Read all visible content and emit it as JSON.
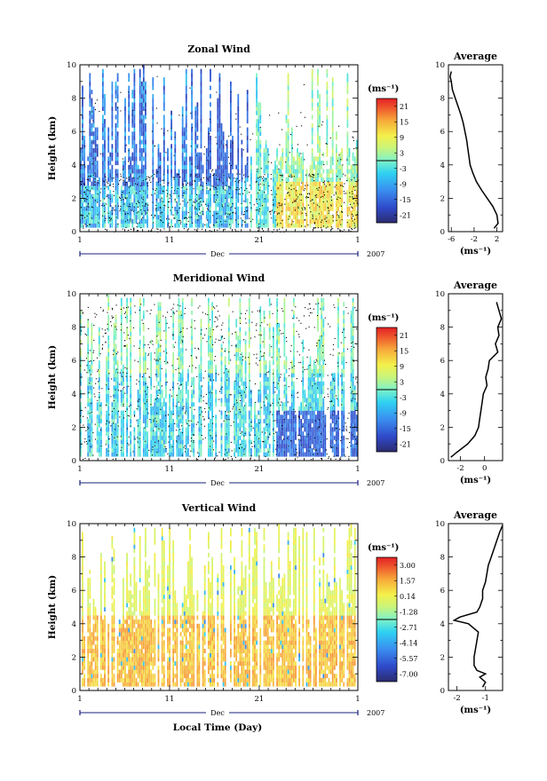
{
  "global": {
    "xlabel": "Local Time (Day)",
    "month_label": "Dec",
    "year_label": "2007",
    "x_tick_labels": [
      "1",
      "11",
      "21",
      "1"
    ],
    "y_tick_labels": [
      "0",
      "2",
      "4",
      "6",
      "8",
      "10"
    ],
    "ylabel": "Height (km)",
    "avg_title": "Average",
    "unit_label": "(ms⁻¹)"
  },
  "chart_data": [
    {
      "type": "heatmap",
      "title": "Zonal Wind",
      "xlabel": "Dec",
      "ylabel": "Height (km)",
      "x_range": [
        1,
        32
      ],
      "ylim": [
        0,
        10
      ],
      "colorbar_label": "(ms⁻¹)",
      "colorbar_ticks": [
        "21",
        "15",
        "9",
        "3",
        "-3",
        "-9",
        "-15",
        "-21"
      ],
      "colorbar_range": [
        -24,
        24
      ],
      "colorbar_line_at": "0",
      "profile": {
        "title": "Average",
        "xlabel": "(ms⁻¹)",
        "xlim": [
          -6.5,
          3
        ],
        "x_tick_labels": [
          "-6",
          "-2",
          "2"
        ],
        "heights": [
          0.2,
          0.5,
          1,
          1.5,
          2,
          2.5,
          3,
          3.5,
          4,
          4.5,
          5,
          5.5,
          6,
          6.5,
          7,
          7.5,
          8,
          8.5,
          9,
          9.3,
          9.6
        ],
        "values": [
          1.5,
          2.2,
          2.0,
          1.3,
          0.3,
          -0.7,
          -1.6,
          -2.2,
          -2.7,
          -2.9,
          -3.1,
          -3.3,
          -3.6,
          -3.9,
          -4.3,
          -4.8,
          -5.3,
          -5.8,
          -6.0,
          -6.2,
          -6.0
        ]
      }
    },
    {
      "type": "heatmap",
      "title": "Meridional Wind",
      "xlabel": "Dec",
      "ylabel": "Height (km)",
      "x_range": [
        1,
        32
      ],
      "ylim": [
        0,
        10
      ],
      "colorbar_label": "(ms⁻¹)",
      "colorbar_ticks": [
        "21",
        "15",
        "9",
        "3",
        "-3",
        "-9",
        "-15",
        "-21"
      ],
      "colorbar_range": [
        -24,
        24
      ],
      "colorbar_line_at": "0",
      "profile": {
        "title": "Average",
        "xlabel": "(ms⁻¹)",
        "xlim": [
          -3,
          1.5
        ],
        "x_tick_labels": [
          "-2",
          "0"
        ],
        "heights": [
          0.2,
          0.5,
          1,
          1.5,
          2,
          2.5,
          3,
          3.5,
          4,
          4.5,
          5,
          5.5,
          6,
          6.5,
          7,
          7.5,
          8,
          8.5,
          9,
          9.5
        ],
        "values": [
          -2.8,
          -2.3,
          -1.4,
          -0.8,
          -0.5,
          -0.4,
          -0.3,
          -0.2,
          -0.1,
          0.2,
          0.1,
          0.3,
          0.4,
          1.1,
          0.9,
          1.2,
          1.1,
          1.4,
          1.2,
          1.0
        ]
      }
    },
    {
      "type": "heatmap",
      "title": "Vertical Wind",
      "xlabel": "Dec",
      "ylabel": "Height (km)",
      "x_range": [
        1,
        32
      ],
      "ylim": [
        0,
        10
      ],
      "colorbar_label": "(ms⁻¹)",
      "colorbar_ticks": [
        "3.00",
        "1.57",
        "0.14",
        "-1.28",
        "-2.71",
        "-4.14",
        "-5.57",
        "-7.00"
      ],
      "colorbar_range": [
        -7.7,
        3.7
      ],
      "colorbar_line_at": "-0.57",
      "profile": {
        "title": "Average",
        "xlabel": "(ms⁻¹)",
        "xlim": [
          -2.3,
          -0.4
        ],
        "x_tick_labels": [
          "-2",
          "-1"
        ],
        "heights": [
          0.2,
          0.5,
          0.8,
          1.0,
          1.2,
          1.5,
          2,
          2.5,
          3,
          3.5,
          4,
          4.2,
          4.4,
          4.7,
          5,
          5.5,
          6,
          6.5,
          7,
          7.5,
          8,
          8.5,
          9,
          9.5,
          9.9
        ],
        "values": [
          -1.1,
          -1.0,
          -1.2,
          -1.0,
          -1.3,
          -1.4,
          -1.4,
          -1.35,
          -1.3,
          -1.25,
          -1.6,
          -2.1,
          -1.9,
          -1.3,
          -1.2,
          -1.1,
          -1.1,
          -1.0,
          -0.95,
          -0.9,
          -0.8,
          -0.7,
          -0.6,
          -0.5,
          -0.4
        ]
      }
    }
  ]
}
